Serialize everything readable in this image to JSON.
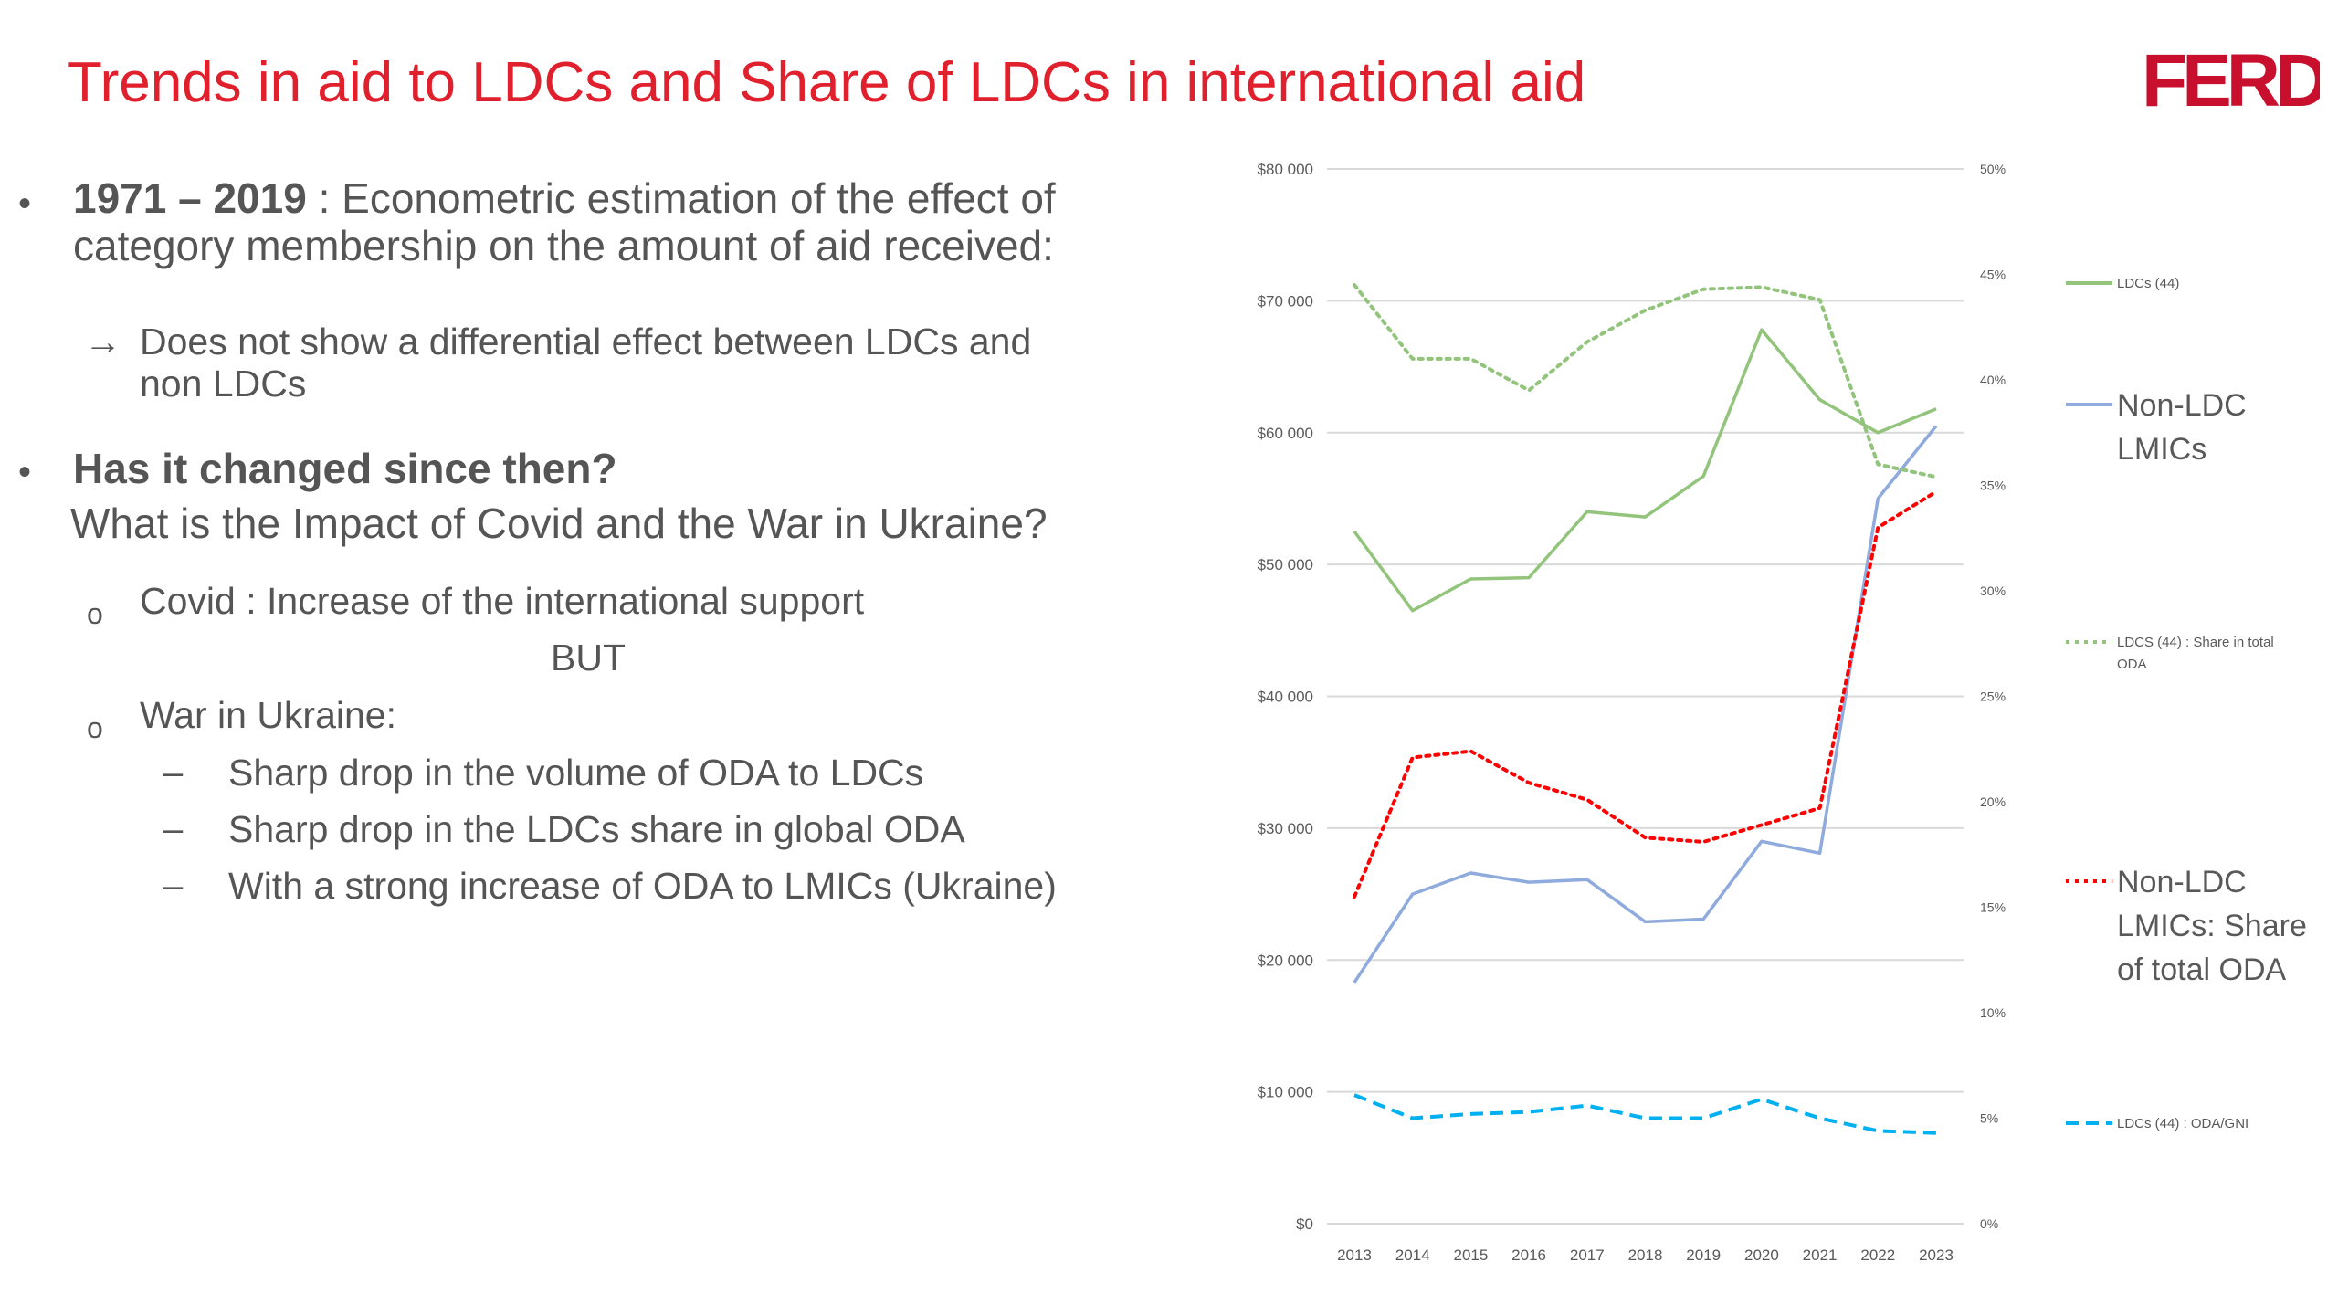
{
  "slide": {
    "title": "Trends in aid to LDCs and Share of LDCs in international aid",
    "logo_text": "FERDi",
    "bullet1": {
      "years": "1971 – 2019",
      "text_line1": " : Econometric estimation of the effect of",
      "text_line2": "category membership on the amount of aid received:",
      "arrow": "→",
      "sub_line1": "Does not show a differential effect between LDCs and",
      "sub_line2": "non LDCs"
    },
    "bullet2": {
      "heading": "Has it changed since then?",
      "question": "What is the Impact of Covid and the War in Ukraine?",
      "covid": "Covid : Increase of the international support",
      "but": "BUT",
      "war": "War in Ukraine:",
      "drops": [
        "Sharp drop in the volume of ODA to LDCs",
        "Sharp drop in the LDCs share in global ODA",
        "With a strong increase of ODA to LMICs (Ukraine)"
      ],
      "bullet_symbol": "•",
      "circle_symbol": "o",
      "dash_symbol": "–"
    }
  },
  "chart_data": {
    "type": "line",
    "x": [
      "2013",
      "2014",
      "2015",
      "2016",
      "2017",
      "2018",
      "2019",
      "2020",
      "2021",
      "2022",
      "2023"
    ],
    "y_left": {
      "ylim": [
        0,
        80000
      ],
      "ticks": [
        "$0",
        "$10 000",
        "$20 000",
        "$30 000",
        "$40 000",
        "$50 000",
        "$60 000",
        "$70 000",
        "$80 000"
      ]
    },
    "y_right": {
      "ylim": [
        0,
        50
      ],
      "ticks": [
        "0%",
        "5%",
        "10%",
        "15%",
        "20%",
        "25%",
        "30%",
        "35%",
        "40%",
        "45%",
        "50%"
      ]
    },
    "grid": true,
    "legend_placement": "right",
    "series": [
      {
        "name": "LDCs (44)",
        "axis": "left",
        "style": "solid",
        "color": "#92c47c",
        "values": [
          52500,
          46500,
          48900,
          49000,
          54000,
          53600,
          56700,
          67800,
          62500,
          60000,
          61800
        ]
      },
      {
        "name": "Non-LDC LMICs",
        "axis": "left",
        "style": "solid",
        "color": "#8faadc",
        "values": [
          18300,
          25000,
          26600,
          25900,
          26100,
          22900,
          23100,
          29000,
          28100,
          55000,
          60500
        ]
      },
      {
        "name": "LDCS (44) : Share in total ODA",
        "axis": "right",
        "style": "dotted",
        "color": "#92c47c",
        "values": [
          44.5,
          41.0,
          41.0,
          39.5,
          41.8,
          43.3,
          44.3,
          44.4,
          43.8,
          36.0,
          35.4
        ]
      },
      {
        "name": "Non-LDC LMICs: Share of total ODA",
        "axis": "right",
        "style": "dotted",
        "color": "#ff0000",
        "values": [
          15.5,
          22.1,
          22.4,
          20.9,
          20.1,
          18.3,
          18.1,
          18.9,
          19.7,
          33.0,
          34.7
        ]
      },
      {
        "name": "LDCs (44) : ODA/GNI",
        "axis": "right",
        "style": "dashed",
        "color": "#00b0f0",
        "values": [
          6.1,
          5.0,
          5.2,
          5.3,
          5.6,
          5.0,
          5.0,
          5.9,
          5.0,
          4.4,
          4.3
        ]
      }
    ],
    "legend": [
      {
        "label_lines": [
          "LDCs (44)"
        ],
        "size": "small"
      },
      {
        "label_lines": [
          "Non-LDC",
          "LMICs"
        ],
        "size": "large"
      },
      {
        "label_lines": [
          "LDCS (44) : Share in total",
          "ODA"
        ],
        "size": "small"
      },
      {
        "label_lines": [
          "Non-LDC",
          "LMICs: Share",
          "of total ODA"
        ],
        "size": "large"
      },
      {
        "label_lines": [
          "LDCs (44) : ODA/GNI"
        ],
        "size": "small"
      }
    ]
  }
}
